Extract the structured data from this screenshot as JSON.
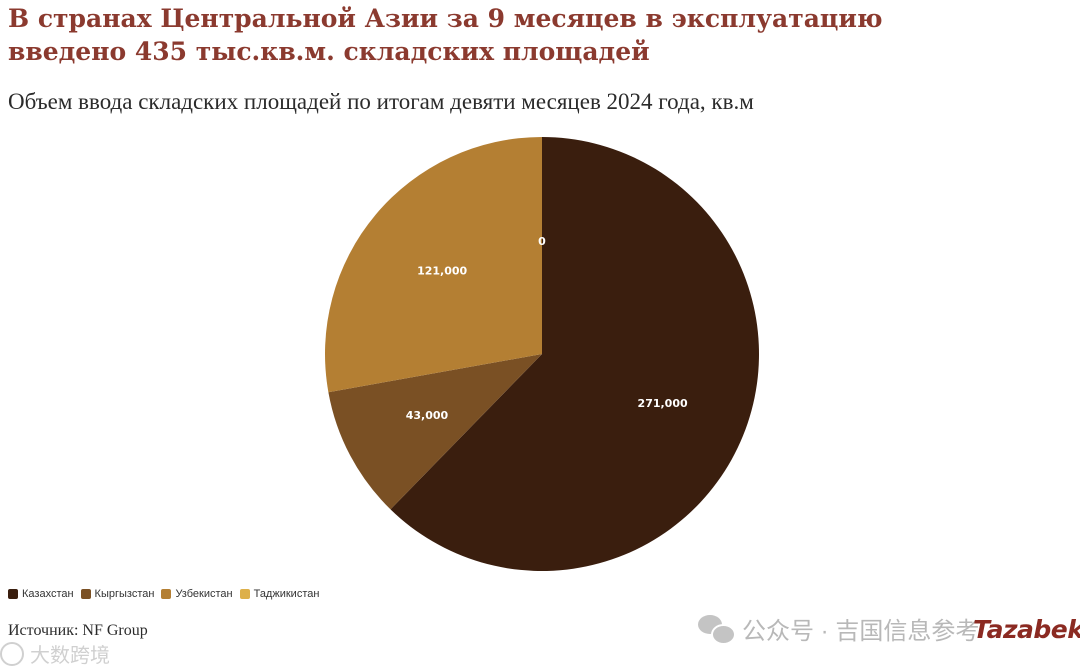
{
  "title": "В странах Центральной Азии за 9 месяцев в эксплуатацию введено 435 тыс.кв.м. складских площадей",
  "subtitle": "Объем ввода складских площадей по итогам девяти месяцев 2024 года, кв.м",
  "source": "Источник: NF Group",
  "watermark": {
    "wechat_text": "公众号 · 吉国信息参考",
    "bottom_text": "大数跨境",
    "logo": "Tazabek"
  },
  "colors": {
    "title": "#8b3a2f",
    "slice_label": "#ffffff"
  },
  "icons": {
    "wechat": "wechat-icon",
    "bottom_watermark": "circle-logo-icon"
  },
  "legend": [
    {
      "label": "Казахстан",
      "color": "#3a1e0e"
    },
    {
      "label": "Кыргызстан",
      "color": "#7a5024"
    },
    {
      "label": "Узбекистан",
      "color": "#b47f33"
    },
    {
      "label": "Таджикистан",
      "color": "#ddb04a"
    }
  ],
  "chart_data": {
    "type": "pie",
    "title": "Объем ввода складских площадей по итогам девяти месяцев 2024 года, кв.м",
    "categories": [
      "Казахстан",
      "Кыргызстан",
      "Узбекистан",
      "Таджикистан"
    ],
    "values": [
      271000,
      43000,
      121000,
      0
    ],
    "data_labels": [
      "271,000",
      "43,000",
      "121,000",
      "0"
    ],
    "colors": [
      "#3a1e0e",
      "#7a5024",
      "#b47f33",
      "#ddb04a"
    ],
    "start_angle": "12 o'clock",
    "direction": "clockwise",
    "legend_position": "bottom-left"
  }
}
